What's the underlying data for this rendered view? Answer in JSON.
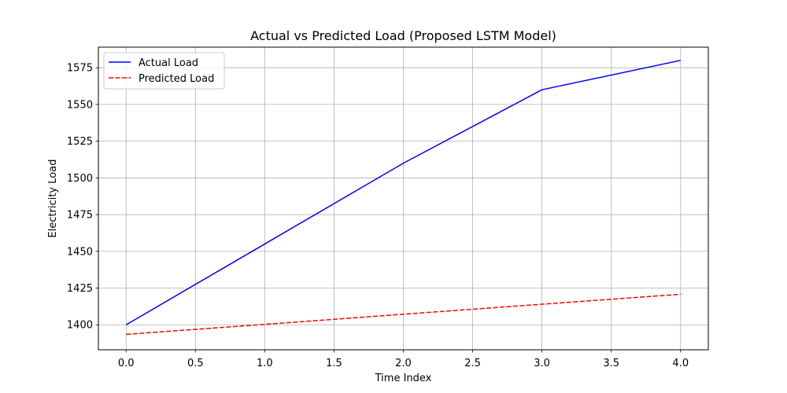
{
  "chart_data": {
    "type": "line",
    "title": "Actual vs Predicted Load (Proposed LSTM Model)",
    "xlabel": "Time Index",
    "ylabel": "Electricity Load",
    "x": [
      0,
      1,
      2,
      3,
      4
    ],
    "series": [
      {
        "name": "Actual Load",
        "values": [
          1400,
          1455,
          1510,
          1560,
          1580
        ],
        "color": "#0000ff",
        "style": "solid"
      },
      {
        "name": "Predicted Load",
        "values": [
          1393.5,
          1400.3,
          1407.2,
          1414.0,
          1420.8
        ],
        "color": "#ff0000",
        "style": "dashed"
      }
    ],
    "xlim": [
      -0.2,
      4.2
    ],
    "ylim": [
      1383,
      1589
    ],
    "xticks": [
      "0.0",
      "0.5",
      "1.0",
      "1.5",
      "2.0",
      "2.5",
      "3.0",
      "3.5",
      "4.0"
    ],
    "yticks": [
      "1400",
      "1425",
      "1450",
      "1475",
      "1500",
      "1525",
      "1550",
      "1575"
    ],
    "grid": true,
    "legend_position": "top-left"
  }
}
